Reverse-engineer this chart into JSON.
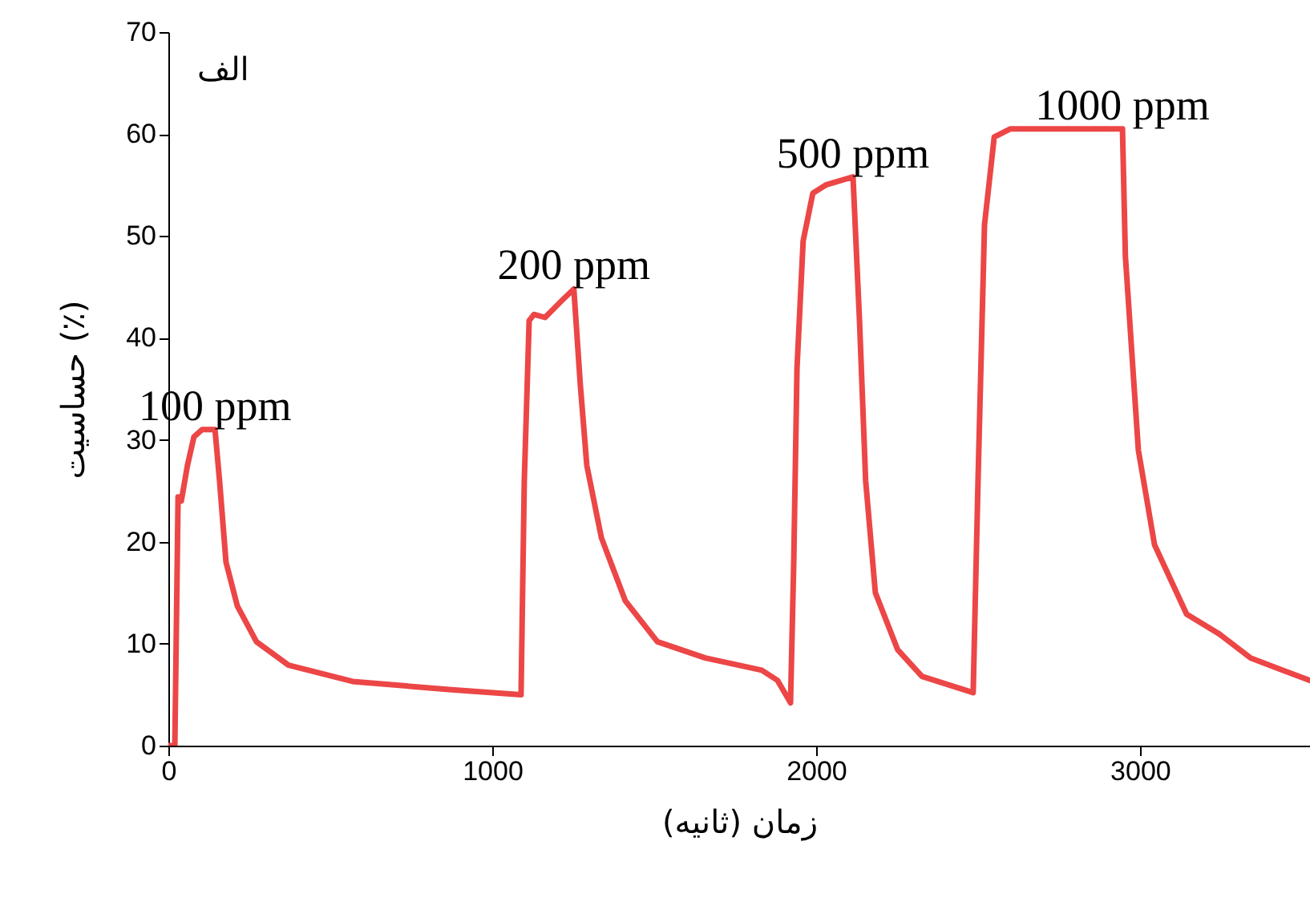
{
  "chart_data": {
    "type": "line",
    "xlabel": "زمان (ثانیه)",
    "ylabel": "حساسیت (٪)",
    "xlim": [
      0,
      3525
    ],
    "ylim": [
      0,
      70
    ],
    "xticks": [
      0,
      1000,
      2000,
      3000
    ],
    "yticks": [
      0,
      10,
      20,
      30,
      40,
      50,
      60,
      70
    ],
    "grid": false,
    "marker": "none",
    "line_style": "solid",
    "series": [
      {
        "color": "#ec4646",
        "x": [
          0,
          20,
          30,
          40,
          59,
          79,
          104,
          144,
          158,
          178,
          213,
          272,
          371,
          569,
          866,
          1089,
          1099,
          1114,
          1129,
          1163,
          1213,
          1252,
          1272,
          1292,
          1337,
          1411,
          1510,
          1658,
          1832,
          1881,
          1921,
          1931,
          1941,
          1960,
          1990,
          2030,
          2114,
          2134,
          2153,
          2183,
          2252,
          2327,
          2485,
          2500,
          2520,
          2550,
          2599,
          2946,
          2955,
          2995,
          3045,
          3144,
          3243,
          3342,
          3441,
          3525
        ],
        "values": [
          0,
          0,
          24.4,
          24,
          27.5,
          30.3,
          31,
          31,
          26,
          18,
          13.7,
          10.2,
          7.9,
          6.3,
          5.5,
          5.0,
          26,
          41.7,
          42.3,
          42,
          43.6,
          44.8,
          35.4,
          27.5,
          20.4,
          14.2,
          10.2,
          8.6,
          7.4,
          6.4,
          4.2,
          18,
          37,
          49.5,
          54.2,
          55,
          55.8,
          41.7,
          26,
          15,
          9.4,
          6.8,
          5.2,
          26,
          51.1,
          59.7,
          60.5,
          60.5,
          48,
          29,
          19.7,
          12.9,
          11,
          8.6,
          7.4,
          6.4
        ]
      }
    ],
    "annotations": [
      "الف",
      {
        "text": "100 ppm",
        "x": 144,
        "y": 31
      },
      {
        "text": "200 ppm",
        "x": 1252,
        "y": 44.8
      },
      {
        "text": "500 ppm",
        "x": 2114,
        "y": 55.8
      },
      {
        "text": "1000 ppm",
        "x": 2946,
        "y": 60.5
      }
    ]
  }
}
